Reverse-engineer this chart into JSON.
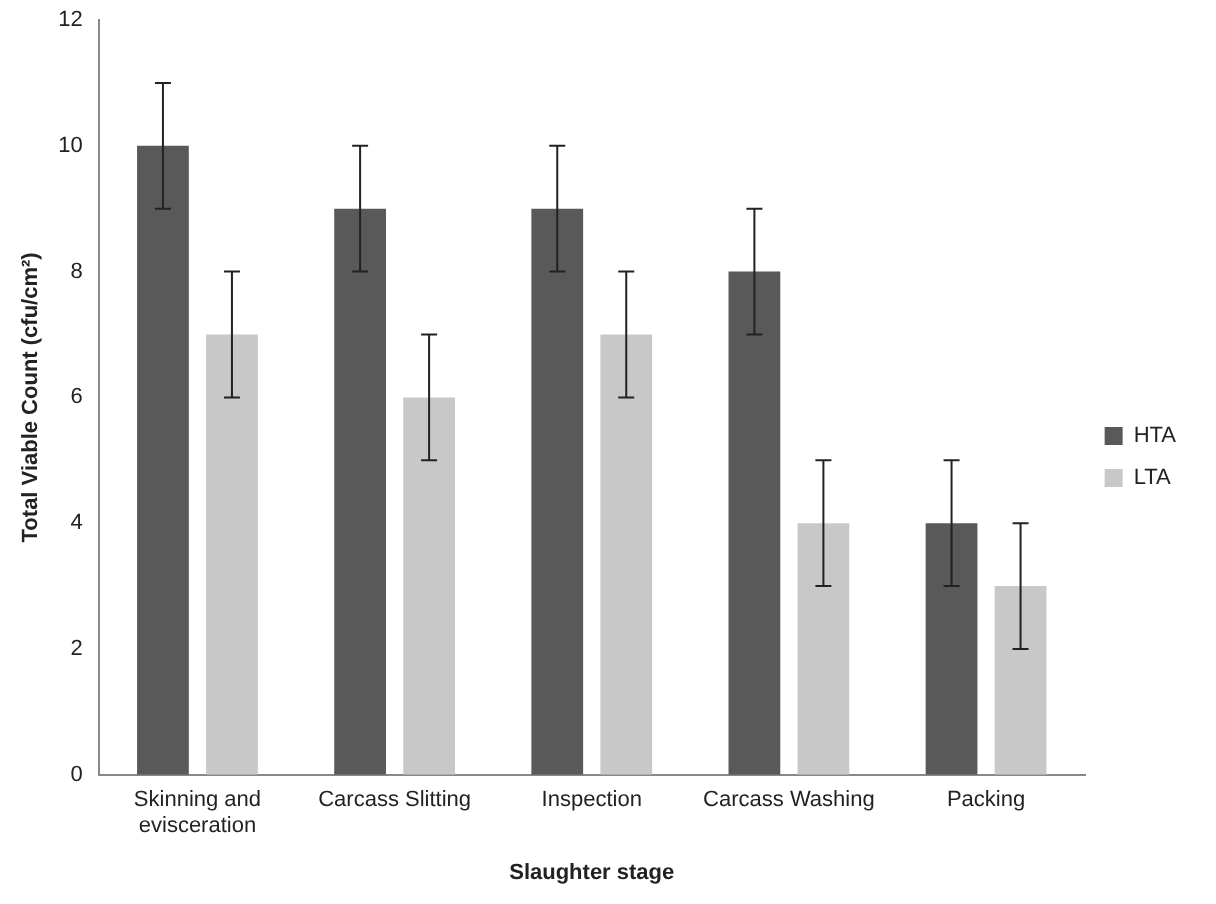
{
  "chart_data": {
    "type": "bar",
    "xlabel": "Slaughter stage",
    "ylabel": "Total Viable Count (cfu/cm²)",
    "categories": [
      "Skinning and evisceration",
      "Carcass Slitting",
      "Inspection",
      "Carcass Washing",
      "Packing"
    ],
    "series": [
      {
        "name": "HTA",
        "color": "#595959",
        "values": [
          10,
          9,
          9,
          8,
          4
        ],
        "errors": [
          1,
          1,
          1,
          1,
          1
        ]
      },
      {
        "name": "LTA",
        "color": "#c8c8c8",
        "values": [
          7,
          6,
          7,
          4,
          3
        ],
        "errors": [
          1,
          1,
          1,
          1,
          1
        ]
      }
    ],
    "ylim": [
      0,
      12
    ],
    "yticks": [
      0,
      2,
      4,
      6,
      8,
      10,
      12
    ],
    "grid": false,
    "legend": "right"
  }
}
